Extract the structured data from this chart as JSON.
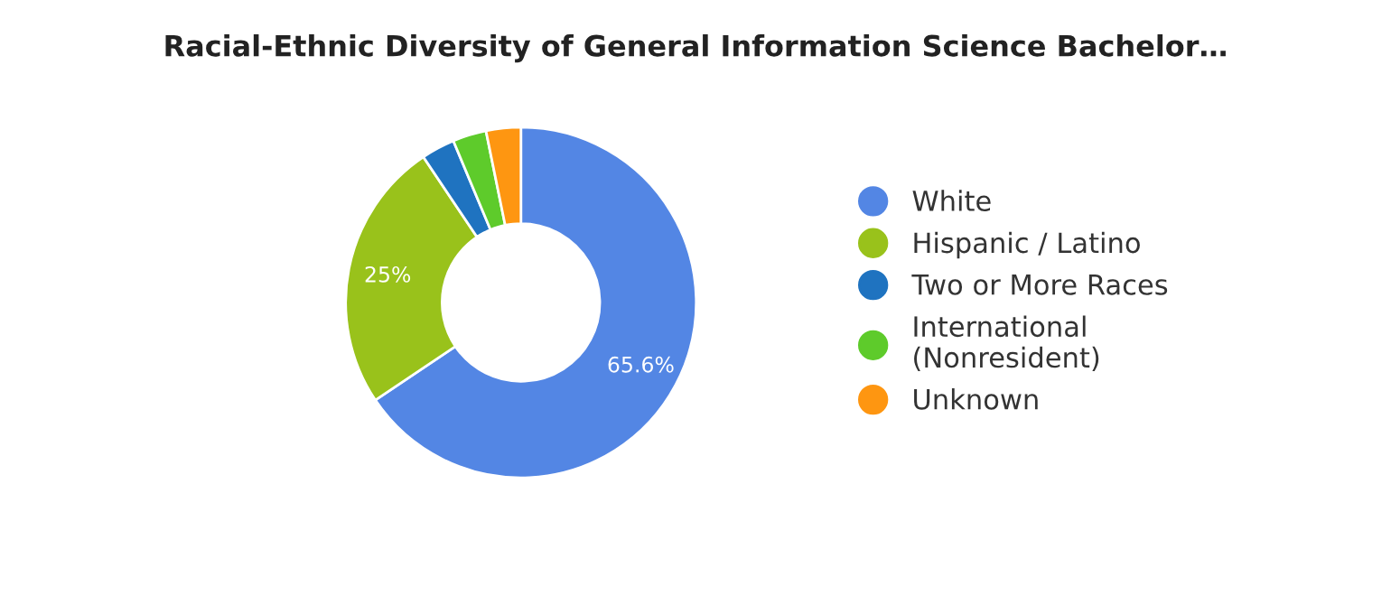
{
  "chart_data": {
    "type": "donut",
    "title": "Racial-Ethnic Diversity of General Information Science Bachelor…",
    "categories": [
      "White",
      "Hispanic / Latino",
      "Two or More Races",
      "International\n(Nonresident)",
      "Unknown"
    ],
    "values": [
      65.6,
      25,
      3.1,
      3.1,
      3.2
    ],
    "colors": [
      "#5386e4",
      "#99c21b",
      "#1f73c0",
      "#5ecb2b",
      "#fe9611"
    ],
    "value_labels": [
      "65.6%",
      "25%",
      null,
      null,
      null
    ],
    "legend": "right"
  }
}
